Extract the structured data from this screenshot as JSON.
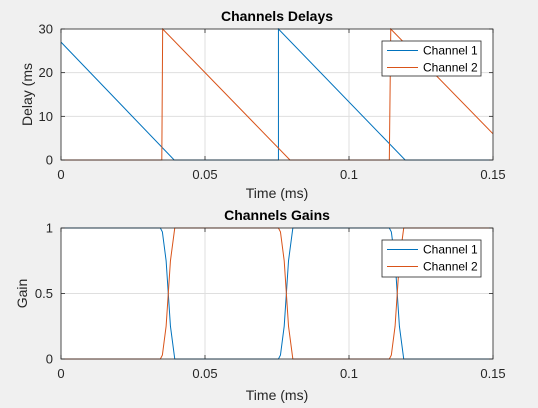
{
  "chart_data": [
    {
      "type": "line",
      "title": "Channels Delays",
      "xlabel": "Time (ms)",
      "ylabel": "Delay (ms",
      "xlim": [
        0,
        0.15
      ],
      "ylim": [
        0,
        30
      ],
      "xticks": [
        0,
        0.05,
        0.1,
        0.15
      ],
      "xticklabels": [
        "0",
        "0.05",
        "0.1",
        "0.15"
      ],
      "yticks": [
        0,
        10,
        20,
        30
      ],
      "yticklabels": [
        "0",
        "10",
        "20",
        "30"
      ],
      "grid": true,
      "legend_position": "top-right",
      "series": [
        {
          "name": "Channel 1",
          "color": "#0072bd",
          "x": [
            0,
            0.0393,
            0.075,
            0.0755,
            0.0755,
            0.1195,
            0.15
          ],
          "y": [
            27,
            0,
            0,
            0,
            30,
            0,
            0
          ]
        },
        {
          "name": "Channel 2",
          "color": "#d95319",
          "x": [
            0,
            0.035,
            0.0353,
            0.0795,
            0.114,
            0.1145,
            0.15
          ],
          "y": [
            0,
            0,
            30,
            0,
            0,
            30,
            6
          ]
        }
      ]
    },
    {
      "type": "line",
      "title": "Channels Gains",
      "xlabel": "Time (ms)",
      "ylabel": "Gain",
      "xlim": [
        0,
        0.15
      ],
      "ylim": [
        0,
        1
      ],
      "xticks": [
        0,
        0.05,
        0.1,
        0.15
      ],
      "xticklabels": [
        "0",
        "0.05",
        "0.1",
        "0.15"
      ],
      "yticks": [
        0,
        0.5,
        1
      ],
      "yticklabels": [
        "0",
        "0.5",
        "1"
      ],
      "grid": true,
      "legend_position": "top-right",
      "series": [
        {
          "name": "Channel 1",
          "color": "#0072bd",
          "x": [
            0,
            0.0345,
            0.0352,
            0.0365,
            0.038,
            0.0395,
            0.0755,
            0.0762,
            0.0775,
            0.079,
            0.0805,
            0.114,
            0.1147,
            0.116,
            0.1175,
            0.119,
            0.15
          ],
          "y": [
            1,
            1,
            0.97,
            0.75,
            0.25,
            0,
            0,
            0.03,
            0.25,
            0.75,
            1,
            1,
            0.97,
            0.75,
            0.25,
            0,
            0
          ]
        },
        {
          "name": "Channel 2",
          "color": "#d95319",
          "x": [
            0,
            0.0345,
            0.0352,
            0.0365,
            0.038,
            0.0395,
            0.0755,
            0.0762,
            0.0775,
            0.079,
            0.0805,
            0.114,
            0.1147,
            0.116,
            0.1175,
            0.119,
            0.15
          ],
          "y": [
            0,
            0,
            0.03,
            0.25,
            0.75,
            1,
            1,
            0.97,
            0.75,
            0.25,
            0,
            0,
            0.03,
            0.25,
            0.75,
            1,
            1
          ]
        }
      ]
    }
  ]
}
